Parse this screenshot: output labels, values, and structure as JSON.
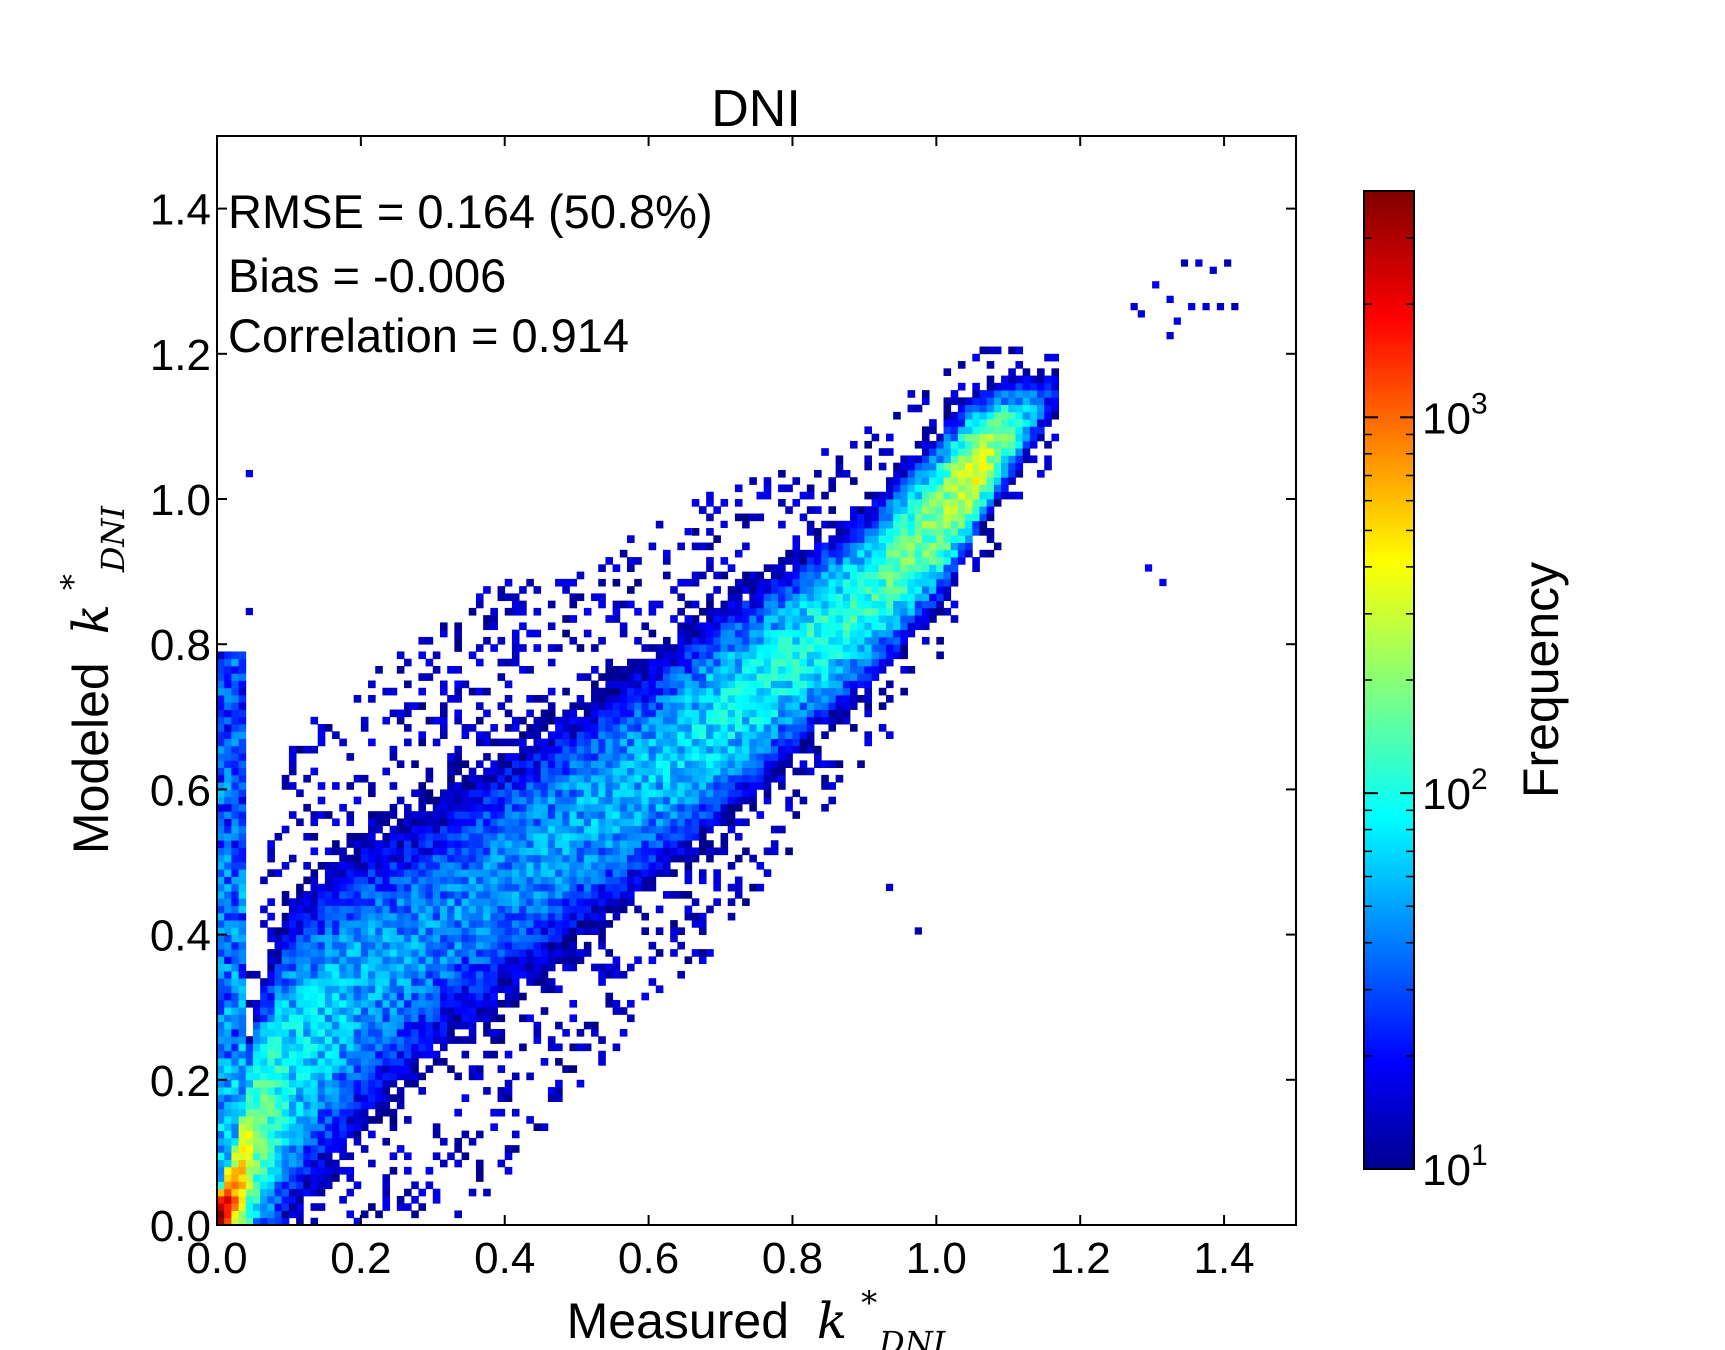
{
  "chart_data": {
    "type": "heatmap",
    "title": "DNI",
    "xlabel": "Measured",
    "ylabel": "Modeled",
    "axis_symbol": {
      "base": "k",
      "sup": "*",
      "sub": "DNI"
    },
    "xlim": [
      0.0,
      1.5
    ],
    "ylim": [
      0.0,
      1.5
    ],
    "xticks": [
      "0.0",
      "0.2",
      "0.4",
      "0.6",
      "0.8",
      "1.0",
      "1.2",
      "1.4"
    ],
    "yticks": [
      "0.0",
      "0.2",
      "0.4",
      "0.6",
      "0.8",
      "1.0",
      "1.2",
      "1.4"
    ],
    "stats": [
      "RMSE = 0.164 (50.8%)",
      "Bias = -0.006",
      "Correlation = 0.914"
    ],
    "colorbar": {
      "label": "Frequency",
      "scale": "log",
      "range": [
        10,
        4000
      ],
      "ticks": [
        {
          "value": 10,
          "base": "10",
          "exp": "1"
        },
        {
          "value": 100,
          "base": "10",
          "exp": "2"
        },
        {
          "value": 1000,
          "base": "10",
          "exp": "3"
        }
      ],
      "colormap": "jet"
    },
    "bin_width": 0.01,
    "ridge": [
      {
        "x": 0.0,
        "y": 0.0,
        "count": 4000,
        "spread": 0.03
      },
      {
        "x": 0.02,
        "y": 0.04,
        "count": 900,
        "spread": 0.05
      },
      {
        "x": 0.05,
        "y": 0.12,
        "count": 200,
        "spread": 0.12
      },
      {
        "x": 0.1,
        "y": 0.22,
        "count": 90,
        "spread": 0.17
      },
      {
        "x": 0.2,
        "y": 0.33,
        "count": 60,
        "spread": 0.17
      },
      {
        "x": 0.3,
        "y": 0.4,
        "count": 50,
        "spread": 0.16
      },
      {
        "x": 0.4,
        "y": 0.48,
        "count": 50,
        "spread": 0.16
      },
      {
        "x": 0.5,
        "y": 0.55,
        "count": 60,
        "spread": 0.14
      },
      {
        "x": 0.6,
        "y": 0.62,
        "count": 70,
        "spread": 0.13
      },
      {
        "x": 0.7,
        "y": 0.7,
        "count": 90,
        "spread": 0.12
      },
      {
        "x": 0.8,
        "y": 0.78,
        "count": 110,
        "spread": 0.1
      },
      {
        "x": 0.9,
        "y": 0.86,
        "count": 130,
        "spread": 0.09
      },
      {
        "x": 1.0,
        "y": 0.97,
        "count": 220,
        "spread": 0.08
      },
      {
        "x": 1.05,
        "y": 1.04,
        "count": 400,
        "spread": 0.06
      },
      {
        "x": 1.1,
        "y": 1.09,
        "count": 150,
        "spread": 0.05
      },
      {
        "x": 1.16,
        "y": 1.14,
        "count": 20,
        "spread": 0.04
      }
    ],
    "left_band": {
      "x_max": 0.03,
      "y_max": 0.78,
      "count": 60
    },
    "outliers": [
      [
        1.34,
        1.32
      ],
      [
        1.36,
        1.32
      ],
      [
        1.38,
        1.31
      ],
      [
        1.4,
        1.32
      ],
      [
        1.3,
        1.29
      ],
      [
        1.32,
        1.27
      ],
      [
        1.27,
        1.26
      ],
      [
        1.28,
        1.25
      ],
      [
        1.35,
        1.26
      ],
      [
        1.37,
        1.26
      ],
      [
        1.39,
        1.26
      ],
      [
        1.41,
        1.26
      ],
      [
        1.33,
        1.24
      ],
      [
        1.32,
        1.22
      ],
      [
        0.67,
        0.98
      ],
      [
        0.7,
        0.96
      ],
      [
        0.65,
        0.95
      ],
      [
        0.75,
        0.97
      ],
      [
        0.04,
        1.03
      ],
      [
        0.04,
        0.84
      ],
      [
        1.29,
        0.9
      ],
      [
        1.31,
        0.88
      ],
      [
        0.97,
        0.4
      ],
      [
        0.93,
        0.46
      ]
    ]
  }
}
